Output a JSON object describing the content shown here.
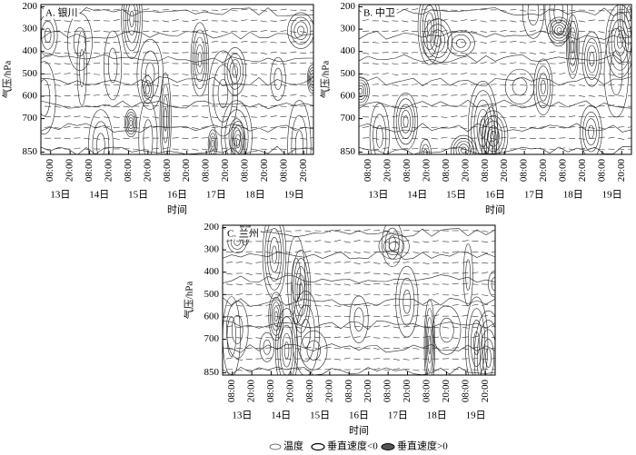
{
  "chart_data": [
    {
      "type": "contour",
      "title": "A. 银川",
      "xlabel": "时间",
      "ylabel": "气压/hPa",
      "categories": [
        "08:00",
        "20:00",
        "08:00",
        "20:00",
        "08:00",
        "20:00",
        "08:00",
        "20:00",
        "08:00",
        "20:00",
        "08:00",
        "20:00",
        "08:00",
        "20:00"
      ],
      "days": [
        "13日",
        "14日",
        "15日",
        "16日",
        "17日",
        "18日",
        "19日"
      ],
      "ylim": [
        190,
        860
      ],
      "yticks": [
        200,
        300,
        400,
        500,
        600,
        700,
        850
      ],
      "y_inverted": true
    },
    {
      "type": "contour",
      "title": "B. 中卫",
      "xlabel": "时间",
      "ylabel": "气压/hPa",
      "categories": [
        "08:00",
        "20:00",
        "08:00",
        "20:00",
        "08:00",
        "20:00",
        "08:00",
        "20:00",
        "08:00",
        "20:00",
        "08:00",
        "20:00",
        "08:00",
        "20:00"
      ],
      "days": [
        "13日",
        "14日",
        "15日",
        "16日",
        "17日",
        "18日",
        "19日"
      ],
      "ylim": [
        190,
        860
      ],
      "yticks": [
        200,
        300,
        400,
        500,
        600,
        700,
        850
      ],
      "y_inverted": true
    },
    {
      "type": "contour",
      "title": "C. 兰州",
      "xlabel": "时间",
      "ylabel": "气压/hPa",
      "categories": [
        "08:00",
        "20:00",
        "08:00",
        "20:00",
        "08:00",
        "20:00",
        "08:00",
        "20:00",
        "08:00",
        "20:00",
        "08:00",
        "20:00",
        "08:00",
        "20:00"
      ],
      "days": [
        "13日",
        "14日",
        "15日",
        "16日",
        "17日",
        "18日",
        "19日"
      ],
      "ylim": [
        190,
        860
      ],
      "yticks": [
        200,
        300,
        400,
        500,
        600,
        700,
        850
      ],
      "y_inverted": true
    }
  ],
  "legend": {
    "items": [
      "温度",
      "垂直速度<0",
      "垂直速度>0"
    ]
  }
}
